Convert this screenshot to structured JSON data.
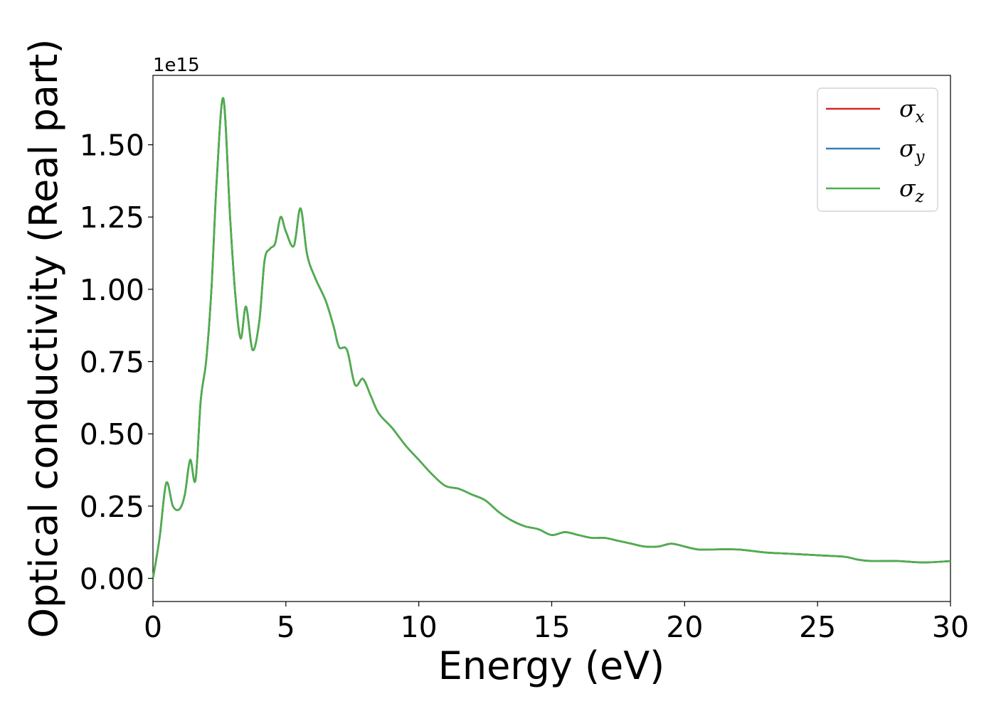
{
  "chart_data": {
    "type": "line",
    "title": "",
    "xlabel": "Energy (eV)",
    "ylabel": "Optical conductivity (Real part)",
    "y_offset_label": "1e15",
    "y_scale_factor": 1000000000000000.0,
    "xlim": [
      0,
      30
    ],
    "ylim": [
      -0.08,
      1.74
    ],
    "x_ticks": [
      0,
      5,
      10,
      15,
      20,
      25,
      30
    ],
    "x_tick_labels": [
      "0",
      "5",
      "10",
      "15",
      "20",
      "25",
      "30"
    ],
    "y_ticks": [
      0,
      0.25,
      0.5,
      0.75,
      1.0,
      1.25,
      1.5
    ],
    "y_tick_labels": [
      "0.00",
      "0.25",
      "0.50",
      "0.75",
      "1.00",
      "1.25",
      "1.50"
    ],
    "grid": false,
    "legend_position": "upper right",
    "x": [
      0,
      0.25,
      0.5,
      0.75,
      1.0,
      1.2,
      1.4,
      1.6,
      1.8,
      2.0,
      2.2,
      2.4,
      2.65,
      2.9,
      3.1,
      3.3,
      3.5,
      3.75,
      4.0,
      4.2,
      4.4,
      4.6,
      4.8,
      5.0,
      5.3,
      5.55,
      5.8,
      6.1,
      6.5,
      6.8,
      7.0,
      7.3,
      7.6,
      7.9,
      8.2,
      8.5,
      9.0,
      9.5,
      10.0,
      10.5,
      11.0,
      11.5,
      12.0,
      12.5,
      13.0,
      13.5,
      14.0,
      14.5,
      15.0,
      15.5,
      16.0,
      16.5,
      17.0,
      17.5,
      18.0,
      18.5,
      19.0,
      19.5,
      20.0,
      20.5,
      21.0,
      22.0,
      23.0,
      24.0,
      25.0,
      26.0,
      26.5,
      27.0,
      28.0,
      29.0,
      30.0
    ],
    "series": [
      {
        "name": "σx",
        "color": "#d62728",
        "values": [
          0.0,
          0.14,
          0.33,
          0.25,
          0.24,
          0.29,
          0.41,
          0.34,
          0.62,
          0.75,
          1.0,
          1.38,
          1.66,
          1.25,
          0.98,
          0.83,
          0.94,
          0.79,
          0.89,
          1.1,
          1.14,
          1.16,
          1.25,
          1.2,
          1.15,
          1.28,
          1.12,
          1.04,
          0.96,
          0.87,
          0.8,
          0.79,
          0.67,
          0.69,
          0.63,
          0.57,
          0.52,
          0.46,
          0.41,
          0.36,
          0.32,
          0.31,
          0.29,
          0.27,
          0.23,
          0.2,
          0.18,
          0.17,
          0.15,
          0.16,
          0.15,
          0.14,
          0.14,
          0.13,
          0.12,
          0.11,
          0.11,
          0.12,
          0.11,
          0.1,
          0.1,
          0.1,
          0.09,
          0.085,
          0.08,
          0.075,
          0.065,
          0.06,
          0.06,
          0.055,
          0.06
        ]
      },
      {
        "name": "σy",
        "color": "#377eb8",
        "values": [
          0.0,
          0.14,
          0.33,
          0.25,
          0.24,
          0.29,
          0.41,
          0.34,
          0.62,
          0.75,
          1.0,
          1.38,
          1.66,
          1.25,
          0.98,
          0.83,
          0.94,
          0.79,
          0.89,
          1.1,
          1.14,
          1.16,
          1.25,
          1.2,
          1.15,
          1.28,
          1.12,
          1.04,
          0.96,
          0.87,
          0.8,
          0.79,
          0.67,
          0.69,
          0.63,
          0.57,
          0.52,
          0.46,
          0.41,
          0.36,
          0.32,
          0.31,
          0.29,
          0.27,
          0.23,
          0.2,
          0.18,
          0.17,
          0.15,
          0.16,
          0.15,
          0.14,
          0.14,
          0.13,
          0.12,
          0.11,
          0.11,
          0.12,
          0.11,
          0.1,
          0.1,
          0.1,
          0.09,
          0.085,
          0.08,
          0.075,
          0.065,
          0.06,
          0.06,
          0.055,
          0.06
        ]
      },
      {
        "name": "σz",
        "color": "#4daf4a",
        "values": [
          0.0,
          0.14,
          0.33,
          0.25,
          0.24,
          0.29,
          0.41,
          0.34,
          0.62,
          0.75,
          1.0,
          1.38,
          1.66,
          1.25,
          0.98,
          0.83,
          0.94,
          0.79,
          0.89,
          1.1,
          1.14,
          1.16,
          1.25,
          1.2,
          1.15,
          1.28,
          1.12,
          1.04,
          0.96,
          0.87,
          0.8,
          0.79,
          0.67,
          0.69,
          0.63,
          0.57,
          0.52,
          0.46,
          0.41,
          0.36,
          0.32,
          0.31,
          0.29,
          0.27,
          0.23,
          0.2,
          0.18,
          0.17,
          0.15,
          0.16,
          0.15,
          0.14,
          0.14,
          0.13,
          0.12,
          0.11,
          0.11,
          0.12,
          0.11,
          0.1,
          0.1,
          0.1,
          0.09,
          0.085,
          0.08,
          0.075,
          0.065,
          0.06,
          0.06,
          0.055,
          0.06
        ]
      }
    ],
    "legend": [
      {
        "symbol": "σ",
        "sub": "x",
        "color": "#d62728"
      },
      {
        "symbol": "σ",
        "sub": "y",
        "color": "#377eb8"
      },
      {
        "symbol": "σ",
        "sub": "z",
        "color": "#4daf4a"
      }
    ]
  }
}
